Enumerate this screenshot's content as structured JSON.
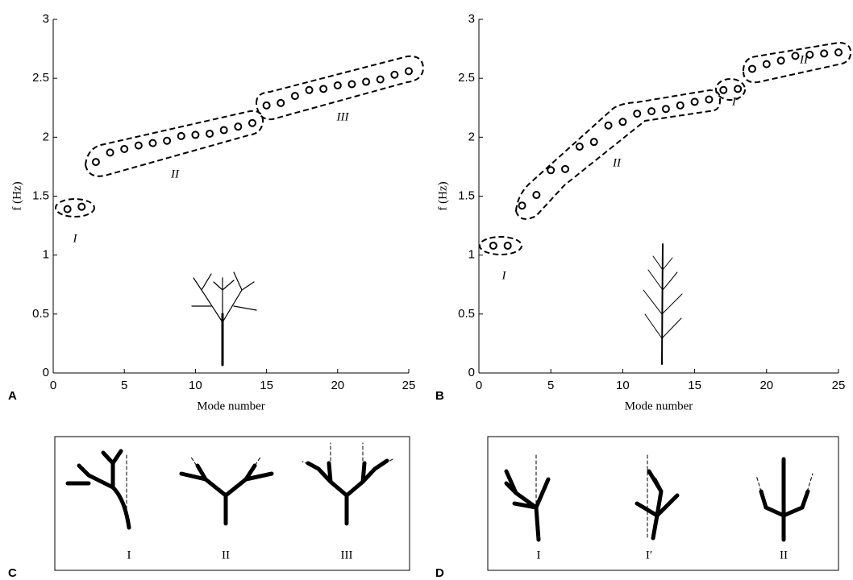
{
  "chart_data": [
    {
      "type": "scatter",
      "panel": "A",
      "xlabel": "Mode number",
      "ylabel": "f (Hz)",
      "x": [
        1,
        2,
        3,
        4,
        5,
        6,
        7,
        8,
        9,
        10,
        11,
        12,
        13,
        14,
        15,
        16,
        17,
        18,
        19,
        20,
        21,
        22,
        23,
        24,
        25
      ],
      "values": [
        1.39,
        1.41,
        1.79,
        1.87,
        1.9,
        1.93,
        1.95,
        1.97,
        2.01,
        2.02,
        2.03,
        2.06,
        2.09,
        2.12,
        2.27,
        2.29,
        2.35,
        2.4,
        2.41,
        2.44,
        2.45,
        2.47,
        2.49,
        2.53,
        2.56
      ],
      "color": "#000000",
      "xlim": [
        0,
        25
      ],
      "ylim": [
        0,
        3
      ],
      "xticks": [
        0,
        5,
        10,
        15,
        20,
        25
      ],
      "yticks": [
        0,
        0.5,
        1,
        1.5,
        2,
        2.5,
        3
      ],
      "annotations": [
        "I",
        "II",
        "III"
      ]
    },
    {
      "type": "scatter",
      "panel": "B",
      "xlabel": "Mode number",
      "ylabel": "f (Hz)",
      "x": [
        1,
        2,
        3,
        4,
        5,
        6,
        7,
        8,
        9,
        10,
        11,
        12,
        13,
        14,
        15,
        16,
        17,
        18,
        19,
        20,
        21,
        22,
        23,
        24,
        25
      ],
      "values": [
        1.08,
        1.08,
        1.42,
        1.51,
        1.72,
        1.73,
        1.92,
        1.96,
        2.1,
        2.13,
        2.2,
        2.22,
        2.24,
        2.27,
        2.3,
        2.32,
        2.4,
        2.41,
        2.58,
        2.62,
        2.65,
        2.69,
        2.7,
        2.71,
        2.72
      ],
      "color": "#000000",
      "xlim": [
        0,
        25
      ],
      "ylim": [
        0,
        3
      ],
      "xticks": [
        0,
        5,
        10,
        15,
        20,
        25
      ],
      "yticks": [
        0,
        0.5,
        1,
        1.5,
        2,
        2.5,
        3
      ],
      "annotations": [
        "I",
        "II",
        "I′",
        "II"
      ]
    }
  ],
  "diagrams": [
    {
      "panel": "C",
      "labels": [
        "I",
        "II",
        "III"
      ]
    },
    {
      "panel": "D",
      "labels": [
        "I",
        "I′",
        "II"
      ]
    }
  ]
}
